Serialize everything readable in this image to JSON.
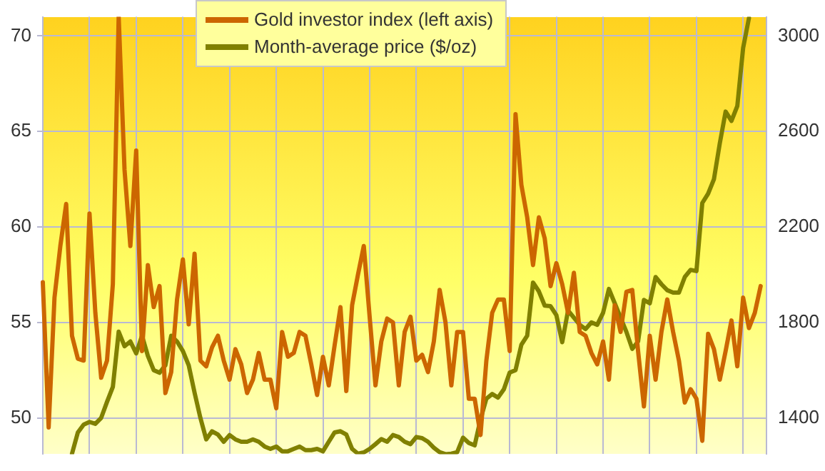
{
  "chart_data": {
    "type": "line",
    "categories": [
      null,
      null,
      null,
      null,
      null,
      null,
      null,
      null,
      null,
      null,
      null,
      null,
      null,
      null,
      null,
      null,
      null,
      null,
      null,
      null,
      null,
      null,
      null,
      null,
      null,
      null,
      null,
      null,
      null,
      null,
      null,
      null,
      null,
      null,
      null,
      null,
      null,
      null,
      null,
      null,
      null,
      null,
      null,
      null,
      null,
      null,
      null,
      null,
      null,
      null,
      null,
      null,
      null,
      null,
      null,
      null,
      null,
      null,
      null,
      null,
      null,
      null,
      null,
      null,
      null,
      null,
      null,
      null,
      null,
      null,
      null,
      null,
      null,
      null,
      null,
      null,
      null,
      null,
      null,
      null,
      null,
      null,
      null,
      null,
      null,
      null,
      null,
      null,
      null,
      null,
      null,
      null,
      null,
      null,
      null,
      null,
      null,
      null,
      null,
      null,
      null,
      null,
      null,
      null,
      null,
      null,
      null,
      null,
      null,
      null,
      null,
      null,
      null,
      null,
      null,
      null,
      null,
      null,
      null,
      null,
      null,
      null,
      null,
      null,
      null
    ],
    "series": [
      {
        "name": "Gold investor index (left axis)",
        "color": "#cc6600",
        "values": [
          57.1,
          49.5,
          56.3,
          59.0,
          61.2,
          54.3,
          53.1,
          53.0,
          60.7,
          55.5,
          52.1,
          53.0,
          57.0,
          71.0,
          63.0,
          59.0,
          64.0,
          53.5,
          58.0,
          55.8,
          56.9,
          51.3,
          52.4,
          56.2,
          58.3,
          54.9,
          58.6,
          53.0,
          52.7,
          53.7,
          54.3,
          53.0,
          52.0,
          53.6,
          52.8,
          51.3,
          52.0,
          53.4,
          52.0,
          52.0,
          50.5,
          54.5,
          53.2,
          53.4,
          54.5,
          54.3,
          52.8,
          51.2,
          53.2,
          51.7,
          53.8,
          55.8,
          51.4,
          55.9,
          57.5,
          59.0,
          55.3,
          51.7,
          54.0,
          55.2,
          55.0,
          51.7,
          54.5,
          55.3,
          53.0,
          53.3,
          52.4,
          54.0,
          56.7,
          55.0,
          51.7,
          54.5,
          54.5,
          51.0,
          51.0,
          49.1,
          53.0,
          55.5,
          56.2,
          56.2,
          53.5,
          65.9,
          62.2,
          60.5,
          58.0,
          60.5,
          59.4,
          56.9,
          58.1,
          57.0,
          55.5,
          57.6,
          54.5,
          54.3,
          53.4,
          52.8,
          54.0,
          52.0,
          55.9,
          54.5,
          56.6,
          56.7,
          53.5,
          50.6,
          54.3,
          52.0,
          54.5,
          56.2,
          54.5,
          53.0,
          50.8,
          51.5,
          51.0,
          48.8,
          54.4,
          53.6,
          52.0,
          53.5,
          55.1,
          52.7,
          56.3,
          54.7,
          55.5,
          56.9,
          null
        ]
      },
      {
        "name": "Month-average price ($/oz)",
        "color": "#808000",
        "axis": "y2",
        "values": [
          null,
          null,
          null,
          null,
          null,
          1250,
          1339,
          1372,
          1383,
          1375,
          1400,
          1467,
          1530,
          1761,
          1700,
          1720,
          1670,
          1744,
          1660,
          1600,
          1589,
          1620,
          1744,
          1720,
          1680,
          1620,
          1506,
          1400,
          1310,
          1344,
          1330,
          1300,
          1328,
          1310,
          1300,
          1300,
          1310,
          1300,
          1280,
          1270,
          1280,
          1260,
          1260,
          1270,
          1280,
          1265,
          1265,
          1270,
          1260,
          1300,
          1339,
          1344,
          1330,
          1270,
          1250,
          1255,
          1270,
          1290,
          1311,
          1300,
          1328,
          1320,
          1300,
          1290,
          1320,
          1315,
          1300,
          1275,
          1256,
          1248,
          1250,
          1256,
          1317,
          1295,
          1285,
          1394,
          1480,
          1500,
          1485,
          1520,
          1590,
          1600,
          1706,
          1744,
          1967,
          1930,
          1870,
          1868,
          1830,
          1717,
          1850,
          1820,
          1790,
          1772,
          1800,
          1790,
          1840,
          1940,
          1880,
          1820,
          1760,
          1689,
          1720,
          1894,
          1880,
          1990,
          1960,
          1935,
          1925,
          1925,
          1990,
          2020,
          2015,
          2300,
          2339,
          2400,
          2550,
          2683,
          2644,
          2706,
          2950,
          3075,
          null,
          null,
          null
        ]
      }
    ],
    "ylim": [
      48.1,
      71
    ],
    "yticks": [
      50,
      55,
      60,
      65,
      70
    ],
    "y2lim": [
      1248,
      3080
    ],
    "y2ticks": [
      1400,
      1800,
      2200,
      2600,
      3000
    ],
    "grid": true,
    "legend": "top",
    "tick_labels": "y",
    "line_style": "solid",
    "marker": "none"
  }
}
